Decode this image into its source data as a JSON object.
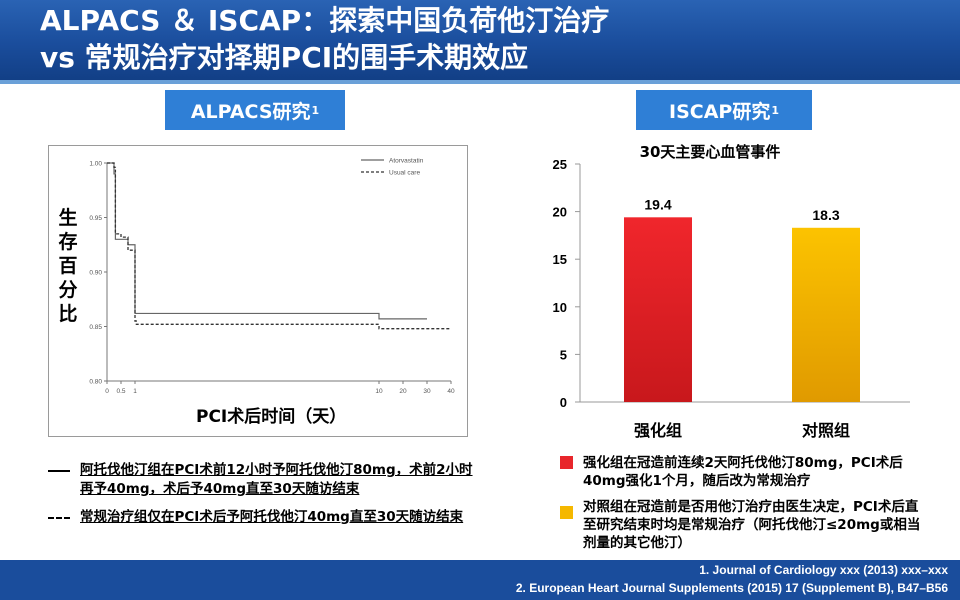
{
  "header": {
    "title": "ALPACS ＆ ISCAP：探索中国负荷他汀治疗\nvs 常规治疗对择期PCI的围手术期效应"
  },
  "alpacs": {
    "tag": "ALPACS研究",
    "tag_sup": "1",
    "y_label": "生\n存\n百\n分\n比",
    "x_label": "PCI术后时间（天）",
    "legend_atorvastatin": "Atorvastatin",
    "legend_usual": "Usual care",
    "y_ticks": [
      "1.00",
      "0.95",
      "0.90",
      "0.85",
      "0.80"
    ],
    "x_ticks": [
      "0",
      "0.5",
      "1",
      "10",
      "20",
      "30",
      "40"
    ],
    "legend1": "阿托伐他汀组在PCI术前12小时予阿托伐他汀80mg，术前2小时再予40mg，术后予40mg直至30天随访结束",
    "legend2": "常规治疗组仅在PCI术后予阿托伐他汀40mg直至30天随访结束"
  },
  "iscap": {
    "tag": "ISCAP研究",
    "tag_sup": "1",
    "chart_title": "30天主要心血管事件",
    "note1": "强化组在冠造前连续2天阿托伐他汀80mg，PCI术后40mg强化1个月，随后改为常规治疗",
    "note2": "对照组在冠造前是否用他汀治疗由医生决定，PCI术后直至研究结束时均是常规治疗（阿托伐他汀≤20mg或相当剂量的其它他汀）"
  },
  "colors": {
    "bar_red": "#e8262b",
    "bar_yellow": "#f5b800",
    "header": "#1a4d9c",
    "tag": "#2f7fd6"
  },
  "chart_data": [
    {
      "type": "line",
      "title": "",
      "xlabel": "PCI术后时间（天）",
      "ylabel": "生存百分比",
      "ylim": [
        0.8,
        1.0
      ],
      "series": [
        {
          "name": "Atorvastatin",
          "x": [
            0,
            0.25,
            0.3,
            0.5,
            0.75,
            0.95,
            1,
            1.05,
            10,
            20,
            30
          ],
          "y": [
            1.0,
            0.99,
            0.93,
            0.93,
            0.925,
            0.925,
            0.862,
            0.862,
            0.857,
            0.857,
            0.857
          ]
        },
        {
          "name": "Usual care",
          "x": [
            0,
            0.25,
            0.3,
            0.5,
            0.75,
            0.95,
            1,
            1.05,
            10,
            20,
            30,
            40
          ],
          "y": [
            1.0,
            0.996,
            0.935,
            0.932,
            0.92,
            0.92,
            0.855,
            0.852,
            0.848,
            0.848,
            0.848,
            0.848
          ]
        }
      ]
    },
    {
      "type": "bar",
      "title": "30天主要心血管事件",
      "categories": [
        "强化组",
        "对照组"
      ],
      "values": [
        19.4,
        18.3
      ],
      "ylim": [
        0,
        25
      ],
      "yticks": [
        0,
        5,
        10,
        15,
        20,
        25
      ]
    }
  ],
  "footer": {
    "ref1": "1. Journal of Cardiology xxx (2013) xxx–xxx",
    "ref2": "2. European Heart Journal Supplements (2015) 17 (Supplement B), B47–B56"
  }
}
